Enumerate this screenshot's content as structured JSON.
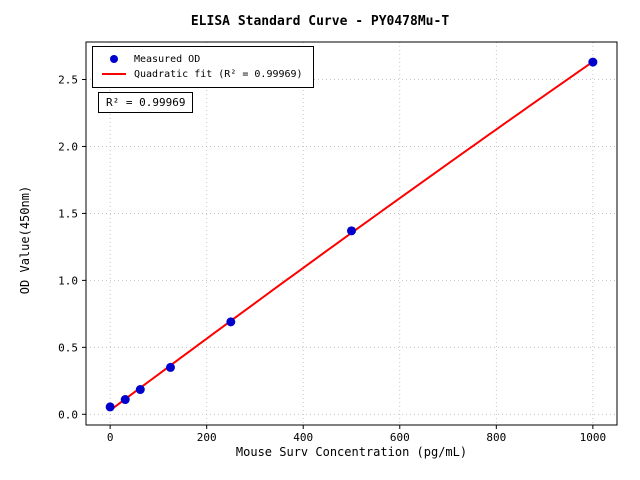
{
  "chart_data": {
    "type": "scatter",
    "title": "ELISA Standard Curve - PY0478Mu-T",
    "xlabel": "Mouse Surv Concentration (pg/mL)",
    "ylabel": "OD Value(450nm)",
    "xlim": [
      -50,
      1050
    ],
    "ylim": [
      -0.08,
      2.78
    ],
    "x_ticks": [
      0,
      200,
      400,
      600,
      800,
      1000
    ],
    "y_ticks": [
      0.0,
      0.5,
      1.0,
      1.5,
      2.0,
      2.5
    ],
    "grid": true,
    "grid_style": "dotted",
    "legend_position": "upper left",
    "annotation": "R² = 0.99969",
    "colors": {
      "scatter": "#0000cd",
      "fit_line": "#ff0000",
      "grid": "#b8b8b8",
      "axes": "#000000"
    },
    "series": [
      {
        "name": "Measured OD",
        "type": "scatter",
        "color": "#0000cd",
        "x": [
          0,
          31.25,
          62.5,
          125,
          250,
          500,
          1000
        ],
        "y": [
          0.055,
          0.11,
          0.185,
          0.35,
          0.69,
          1.37,
          2.63
        ]
      },
      {
        "name": "Quadratic fit (R² = 0.99969)",
        "type": "line",
        "color": "#ff0000",
        "fit": "quadratic",
        "x_range": [
          0,
          1000
        ]
      }
    ]
  }
}
